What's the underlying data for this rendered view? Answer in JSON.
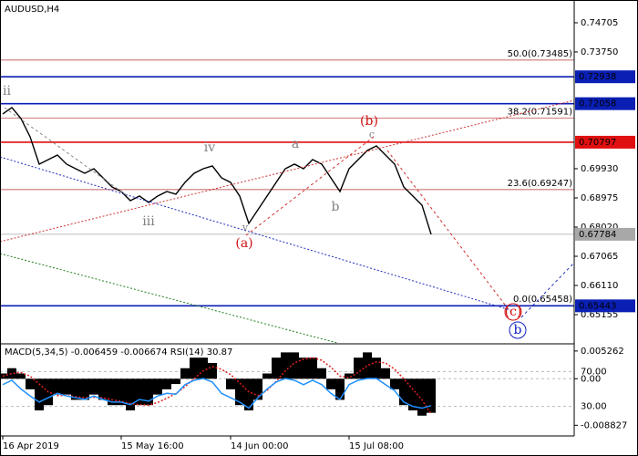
{
  "chart_data": [
    {
      "type": "line",
      "title": "AUDUSD,H4",
      "color": "#000000",
      "categories": [
        "16 Apr 2019",
        null,
        null,
        null,
        null,
        null,
        null,
        null,
        null,
        null,
        null,
        null,
        null,
        "15 May 16:00",
        null,
        null,
        null,
        null,
        null,
        null,
        null,
        null,
        null,
        null,
        null,
        "14 Jun 00:00",
        null,
        null,
        null,
        null,
        null,
        null,
        null,
        null,
        null,
        null,
        null,
        null,
        "15 Jul 08:00",
        null,
        null,
        null,
        null,
        null,
        null,
        null,
        null,
        null
      ],
      "values": [
        0.71721,
        0.7193,
        0.71572,
        0.70975,
        0.7008,
        0.70229,
        0.70378,
        0.7008,
        0.6993,
        0.69781,
        0.6993,
        0.69632,
        0.69333,
        0.69184,
        0.68886,
        0.69035,
        0.68826,
        0.69035,
        0.69184,
        0.69095,
        0.69483,
        0.69781,
        0.6993,
        0.7002,
        0.69632,
        0.69483,
        0.69035,
        0.6814,
        0.68587,
        0.69035,
        0.69483,
        0.6993,
        0.7008,
        0.6993,
        0.70229,
        0.7008,
        0.69632,
        0.69184,
        0.6993,
        0.70229,
        0.70527,
        0.70676,
        0.70378,
        0.7008,
        0.69333,
        0.69035,
        0.68737,
        0.67784
      ],
      "ylim": [
        0.6423,
        0.7545
      ],
      "yticks": [
        0.74705,
        {
          "value": 0.7375,
          "label": "0.73750"
        },
        {
          "value": 0.6993,
          "label": "0.69930"
        },
        0.68975,
        {
          "value": 0.6802,
          "label": "0.68020"
        },
        0.67065,
        {
          "value": 0.6611,
          "label": "0.66110"
        },
        0.65155
      ],
      "levels": [
        {
          "value": 0.72938,
          "color": "#0a1fb4"
        },
        {
          "value": 0.72058,
          "color": "#0a1fb4"
        },
        {
          "value": 0.70797,
          "color": "#e01010"
        },
        {
          "value": 0.67784,
          "color": "#a8a8a8"
        },
        {
          "value": 0.65443,
          "color": "#0a1fb4"
        }
      ],
      "fibo": {
        "color": "#b03030",
        "levels": [
          {
            "value": 0.73485,
            "label": "50.0(0.73485)"
          },
          {
            "value": 0.71591,
            "label": "38.2(0.71591)"
          },
          {
            "value": 0.69247,
            "label": "23.6(0.69247)"
          },
          {
            "value": 0.65458,
            "label": "0.0(0.65458)"
          }
        ]
      },
      "annotations": [
        {
          "text": "ii",
          "color": "#808080"
        },
        {
          "text": "iv",
          "color": "#808080"
        },
        {
          "text": "iii",
          "color": "#808080"
        },
        {
          "text": "v",
          "color": "#808080"
        },
        {
          "text": "a",
          "color": "#808080"
        },
        {
          "text": "b",
          "color": "#808080"
        },
        {
          "text": "c",
          "color": "#808080"
        },
        {
          "text": "(a)",
          "color": "#d01010"
        },
        {
          "text": "(b)",
          "color": "#d01010"
        },
        {
          "text": "(c)",
          "color": "#d01010"
        },
        {
          "text": "b",
          "color": "#1020c0"
        }
      ]
    },
    {
      "type": "macd",
      "title": "MACD(5,34,5) -0.006459 -0.006674 RSI(14) 30.87",
      "color": "#000000",
      "values": [
        0.001,
        0.002,
        0.001,
        -0.002,
        -0.006,
        -0.005,
        -0.003,
        -0.003,
        -0.004,
        -0.004,
        -0.003,
        -0.004,
        -0.005,
        -0.005,
        -0.006,
        -0.005,
        -0.005,
        -0.003,
        -0.002,
        -0.001,
        0.002,
        0.004,
        0.004,
        0.003,
        0.0,
        -0.002,
        -0.005,
        -0.006,
        -0.004,
        0.001,
        0.004,
        0.005,
        0.005,
        0.004,
        0.004,
        0.002,
        -0.002,
        -0.004,
        0.001,
        0.004,
        0.005,
        0.004,
        0.002,
        -0.002,
        -0.005,
        -0.006,
        -0.007,
        -0.006459
      ],
      "signal": {
        "color": "#e02020",
        "values": [
          0.0005,
          0.001,
          0.0012,
          0.0005,
          -0.001,
          -0.0025,
          -0.0032,
          -0.0032,
          -0.0034,
          -0.0036,
          -0.0035,
          -0.0036,
          -0.004,
          -0.0043,
          -0.0047,
          -0.0049,
          -0.005,
          -0.0045,
          -0.0037,
          -0.0028,
          -0.0015,
          0,
          0.0015,
          0.0023,
          0.0018,
          0.0008,
          -0.0008,
          -0.0025,
          -0.0032,
          -0.0022,
          -0.0005,
          0.0015,
          0.003,
          0.0037,
          0.004,
          0.0035,
          0.0022,
          0.0005,
          0.0002,
          0.0012,
          0.0025,
          0.0032,
          0.003,
          0.0018,
          0,
          -0.002,
          -0.004,
          -0.006674
        ]
      },
      "rsi": {
        "color": "#1e90ff",
        "axis": "y2",
        "values": [
          55,
          60,
          50,
          42,
          35,
          40,
          45,
          42,
          40,
          38,
          42,
          38,
          35,
          35,
          32,
          38,
          36,
          42,
          45,
          44,
          55,
          60,
          62,
          58,
          45,
          40,
          35,
          28,
          40,
          50,
          58,
          62,
          60,
          55,
          60,
          55,
          45,
          38,
          55,
          60,
          62,
          62,
          55,
          48,
          35,
          30,
          28,
          30.87
        ]
      },
      "ylim": [
        -0.0105,
        0.00645
      ],
      "yticks": [
        0.005262,
        {
          "value": 0,
          "label": "0.00"
        },
        -0.008827
      ],
      "y2lim": [
        -1.8,
        100.8
      ],
      "y2ticks": [
        {
          "value": 70,
          "label": "70.00"
        },
        {
          "value": 30,
          "label": "30.00"
        }
      ]
    }
  ]
}
